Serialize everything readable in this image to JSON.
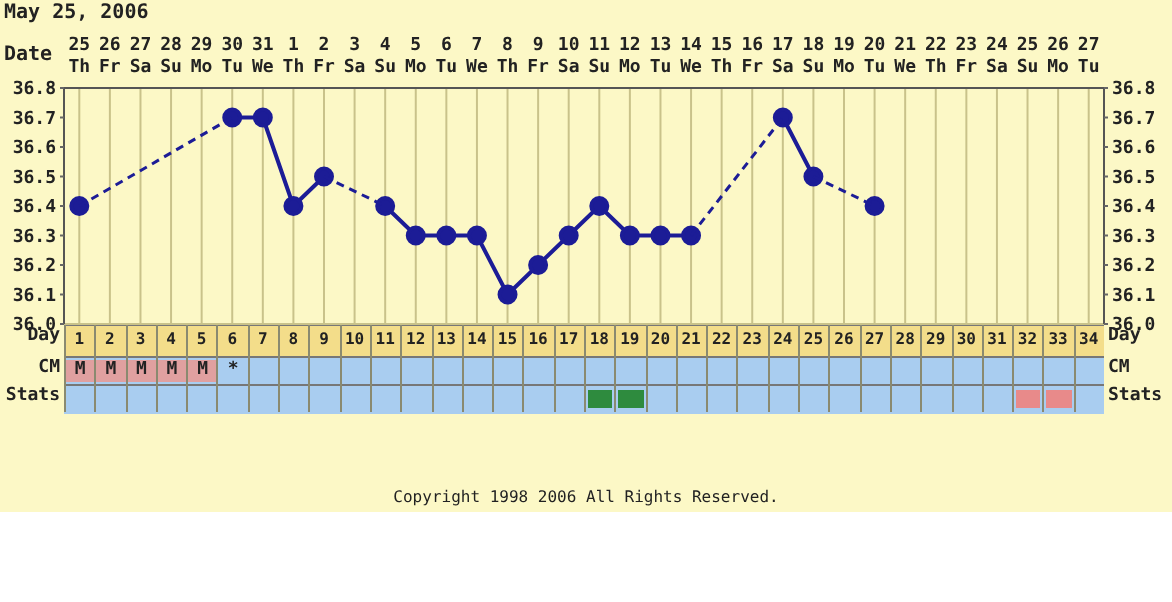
{
  "chart_data": {
    "type": "line",
    "title": "May 25, 2006",
    "categories": [
      "25 Th",
      "26 Fr",
      "27 Sa",
      "28 Su",
      "29 Mo",
      "30 Tu",
      "31 We",
      "1 Th",
      "2 Fr",
      "3 Sa",
      "4 Su",
      "5 Mo",
      "6 Tu",
      "7 We",
      "8 Th",
      "9 Fr",
      "10 Sa",
      "11 Su",
      "12 Mo",
      "13 Tu",
      "14 We",
      "15 Th",
      "16 Fr",
      "17 Sa",
      "18 Su",
      "19 Mo",
      "20 Tu",
      "21 We",
      "22 Th",
      "23 Fr",
      "24 Sa",
      "25 Su",
      "26 Mo",
      "27 Tu"
    ],
    "series": [
      {
        "color": "#1c1c96",
        "values": [
          36.4,
          null,
          null,
          null,
          null,
          36.7,
          36.7,
          36.4,
          36.5,
          null,
          36.4,
          36.3,
          36.3,
          36.3,
          36.1,
          36.2,
          36.3,
          36.4,
          36.3,
          36.3,
          36.3,
          null,
          null,
          36.7,
          36.5,
          null,
          36.4,
          null,
          null,
          null,
          null,
          null,
          null,
          null
        ]
      }
    ],
    "ylim": [
      36.0,
      36.8
    ],
    "yticks": [
      {
        "value": 36.0,
        "label": "36.0"
      },
      {
        "value": 36.1,
        "label": "36.1"
      },
      {
        "value": 36.2,
        "label": "36.2"
      },
      {
        "value": 36.3,
        "label": "36.3"
      },
      {
        "value": 36.4,
        "label": "36.4"
      },
      {
        "value": 36.5,
        "label": "36.5"
      },
      {
        "value": 36.6,
        "label": "36.6"
      },
      {
        "value": 36.7,
        "label": "36.7"
      },
      {
        "value": 36.8,
        "label": "36.8"
      }
    ],
    "y2lim": [
      36.0,
      36.8
    ],
    "y2ticks": [
      {
        "value": 36.0,
        "label": "36.0"
      },
      {
        "value": 36.1,
        "label": "36.1"
      },
      {
        "value": 36.2,
        "label": "36.2"
      },
      {
        "value": 36.3,
        "label": "36.3"
      },
      {
        "value": 36.4,
        "label": "36.4"
      },
      {
        "value": 36.5,
        "label": "36.5"
      },
      {
        "value": 36.6,
        "label": "36.6"
      },
      {
        "value": 36.7,
        "label": "36.7"
      },
      {
        "value": 36.8,
        "label": "36.8"
      }
    ],
    "xlabel": "Date",
    "x2label": "Day",
    "x2lim": [
      0.5,
      34.5
    ],
    "x2ticks": [
      1,
      2,
      3,
      4,
      5,
      6,
      7,
      8,
      9,
      10,
      11,
      12,
      13,
      14,
      15,
      16,
      17,
      18,
      19,
      20,
      21,
      22,
      23,
      24,
      25,
      26,
      27,
      28,
      29,
      30,
      31,
      32,
      33,
      34
    ],
    "grid": true,
    "marker": "circle",
    "line_style": "solid",
    "legend": false,
    "annotations": [
      "CM",
      "Stats",
      "M",
      "M",
      "M",
      "M",
      "M",
      "*",
      "Copyright 1998 2006 All Rights Reserved."
    ]
  }
}
